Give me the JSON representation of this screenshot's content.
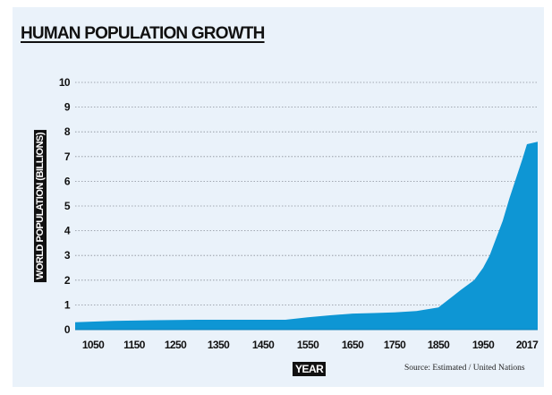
{
  "chart_data": {
    "type": "area",
    "title": "HUMAN POPULATION GROWTH",
    "xlabel": "YEAR",
    "ylabel": "WORLD POPULATION (BILLIONS)",
    "source": "Source: Estimated / United Nations",
    "x_ticks": [
      "1050",
      "1150",
      "1250",
      "1350",
      "1450",
      "1550",
      "1650",
      "1750",
      "1850",
      "1950",
      "2017"
    ],
    "y_ticks": [
      "0",
      "1",
      "2",
      "3",
      "4",
      "5",
      "6",
      "7",
      "8",
      "9",
      "10"
    ],
    "ylim": [
      0,
      10
    ],
    "grid": true,
    "fill_color": "#0e96d4",
    "series": [
      {
        "x": [
          1000,
          1100,
          1200,
          1300,
          1400,
          1500,
          1550,
          1600,
          1650,
          1700,
          1750,
          1800,
          1850,
          1900,
          1930,
          1950,
          1960,
          1970,
          1980,
          1990,
          2000,
          2010,
          2017,
          2025
        ],
        "y": [
          0.3,
          0.35,
          0.38,
          0.4,
          0.4,
          0.4,
          0.5,
          0.58,
          0.65,
          0.67,
          0.7,
          0.75,
          0.9,
          1.6,
          2.0,
          2.5,
          3.0,
          3.7,
          4.4,
          5.3,
          6.1,
          6.9,
          7.5,
          7.6
        ]
      }
    ]
  }
}
